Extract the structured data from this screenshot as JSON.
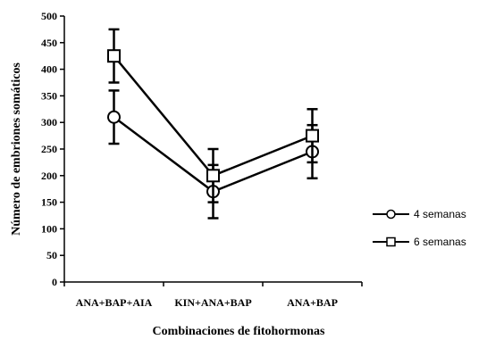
{
  "chart_data": {
    "type": "line",
    "categories": [
      "ANA+BAP+AIA",
      "KIN+ANA+BAP",
      "ANA+BAP"
    ],
    "xlabel": "Combinaciones de fitohormonas",
    "ylabel": "Número de embriones somáticos",
    "ylim": [
      0,
      500
    ],
    "yticks": [
      0,
      50,
      100,
      150,
      200,
      250,
      300,
      350,
      400,
      450,
      500
    ],
    "grid": false,
    "legend_position": "right",
    "series": [
      {
        "name": "4 semanas",
        "marker": "circle",
        "values": [
          310,
          170,
          245
        ],
        "error": [
          50,
          50,
          50
        ]
      },
      {
        "name": "6 semanas",
        "marker": "square",
        "values": [
          425,
          200,
          275
        ],
        "error": [
          50,
          50,
          50
        ]
      }
    ]
  }
}
